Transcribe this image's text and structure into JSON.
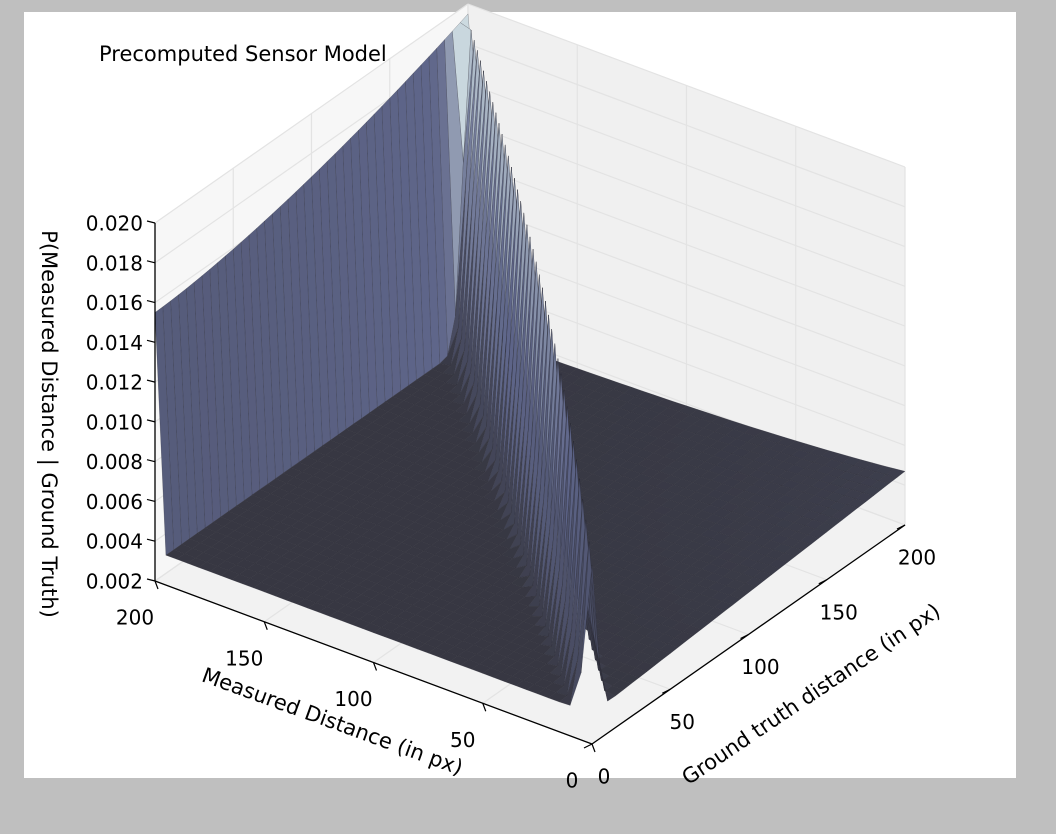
{
  "chart_data": {
    "type": "surface",
    "title": "Precomputed Sensor Model",
    "xlabel": "Ground truth distance (in px)",
    "ylabel": "Measured Distance (in px)",
    "zlabel": "P(Measured Distance | Ground Truth)",
    "x_ticks": [
      "0",
      "50",
      "100",
      "150",
      "200"
    ],
    "y_ticks": [
      "0",
      "50",
      "100",
      "150",
      "200"
    ],
    "z_ticks": [
      "0.002",
      "0.004",
      "0.006",
      "0.008",
      "0.010",
      "0.012",
      "0.014",
      "0.016",
      "0.018",
      "0.020"
    ],
    "xlim": [
      0,
      200
    ],
    "ylim": [
      0,
      200
    ],
    "zlim": [
      0.002,
      0.02
    ],
    "grid": true,
    "model": {
      "description_values": {
        "diagonal_peak_max": 0.0195,
        "diagonal_peak_near_zero": 0.011,
        "uniform_floor": 0.0035,
        "max_range_wall_low": 0.0155,
        "max_range_wall_high": 0.0195,
        "short_decay_far_corner": 0.0047
      }
    },
    "colors": {
      "surface_low": "#34343d",
      "surface_mid": "#5e6589",
      "surface_high": "#dfeff0",
      "wireline": "#2a2a33",
      "pane": "#f2f2f2",
      "grid": "#e3e3e3"
    }
  }
}
